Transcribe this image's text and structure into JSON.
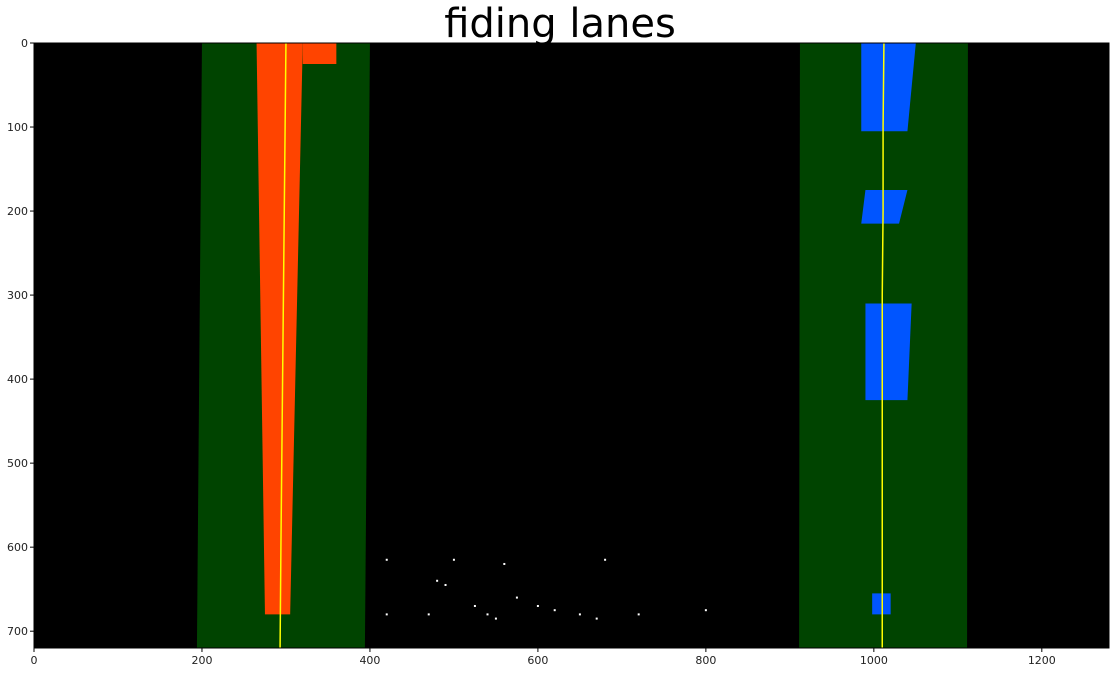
{
  "chart_data": {
    "type": "scatter",
    "title": "fiding lanes",
    "xlabel": "",
    "ylabel": "",
    "xlim": [
      0,
      1280
    ],
    "ylim": [
      720,
      0
    ],
    "x_ticks": [
      0,
      200,
      400,
      600,
      800,
      1000,
      1200
    ],
    "y_ticks": [
      0,
      100,
      200,
      300,
      400,
      500,
      600,
      700
    ],
    "grid": false,
    "background": "#000000",
    "search_windows": [
      {
        "name": "left",
        "x_top": [
          200,
          400
        ],
        "x_bottom": [
          194,
          394
        ],
        "color": "#004400"
      },
      {
        "name": "right",
        "x_top": [
          912,
          1112
        ],
        "x_bottom": [
          911,
          1111
        ],
        "color": "#004400"
      }
    ],
    "lane_pixels": [
      {
        "name": "left",
        "color": "#ff4400",
        "regions": [
          {
            "y": [
              0,
              680
            ],
            "x_top": [
              265,
              320
            ],
            "x_bottom": [
              275,
              305
            ]
          },
          {
            "y": [
              0,
              25
            ],
            "x_top": [
              320,
              360
            ],
            "x_bottom": [
              320,
              360
            ]
          }
        ]
      },
      {
        "name": "right",
        "color": "#0055ff",
        "regions": [
          {
            "y": [
              0,
              105
            ],
            "x_top": [
              985,
              1050
            ],
            "x_bottom": [
              985,
              1040
            ]
          },
          {
            "y": [
              175,
              215
            ],
            "x_top": [
              990,
              1040
            ],
            "x_bottom": [
              985,
              1030
            ]
          },
          {
            "y": [
              310,
              425
            ],
            "x_top": [
              990,
              1045
            ],
            "x_bottom": [
              990,
              1040
            ]
          },
          {
            "y": [
              655,
              680
            ],
            "x_top": [
              998,
              1020
            ],
            "x_bottom": [
              998,
              1020
            ]
          }
        ]
      }
    ],
    "series": [
      {
        "type": "line",
        "color": "#ffff00",
        "x": [
          300,
          299,
          298,
          297,
          296,
          295,
          294,
          293
        ],
        "y": [
          0,
          100,
          200,
          300,
          400,
          500,
          600,
          720
        ]
      },
      {
        "type": "line",
        "color": "#ffff00",
        "x": [
          1012,
          1011,
          1011,
          1010,
          1010,
          1010,
          1010,
          1010
        ],
        "y": [
          0,
          100,
          200,
          300,
          400,
          500,
          600,
          720
        ]
      }
    ],
    "noise_points": {
      "color": "#ffffff",
      "x": [
        420,
        480,
        490,
        500,
        525,
        540,
        560,
        575,
        600,
        620,
        650,
        670,
        680,
        720,
        800,
        420,
        470,
        550
      ],
      "y": [
        615,
        640,
        645,
        615,
        670,
        680,
        620,
        660,
        670,
        675,
        680,
        685,
        615,
        680,
        675,
        680,
        680,
        685
      ]
    }
  }
}
